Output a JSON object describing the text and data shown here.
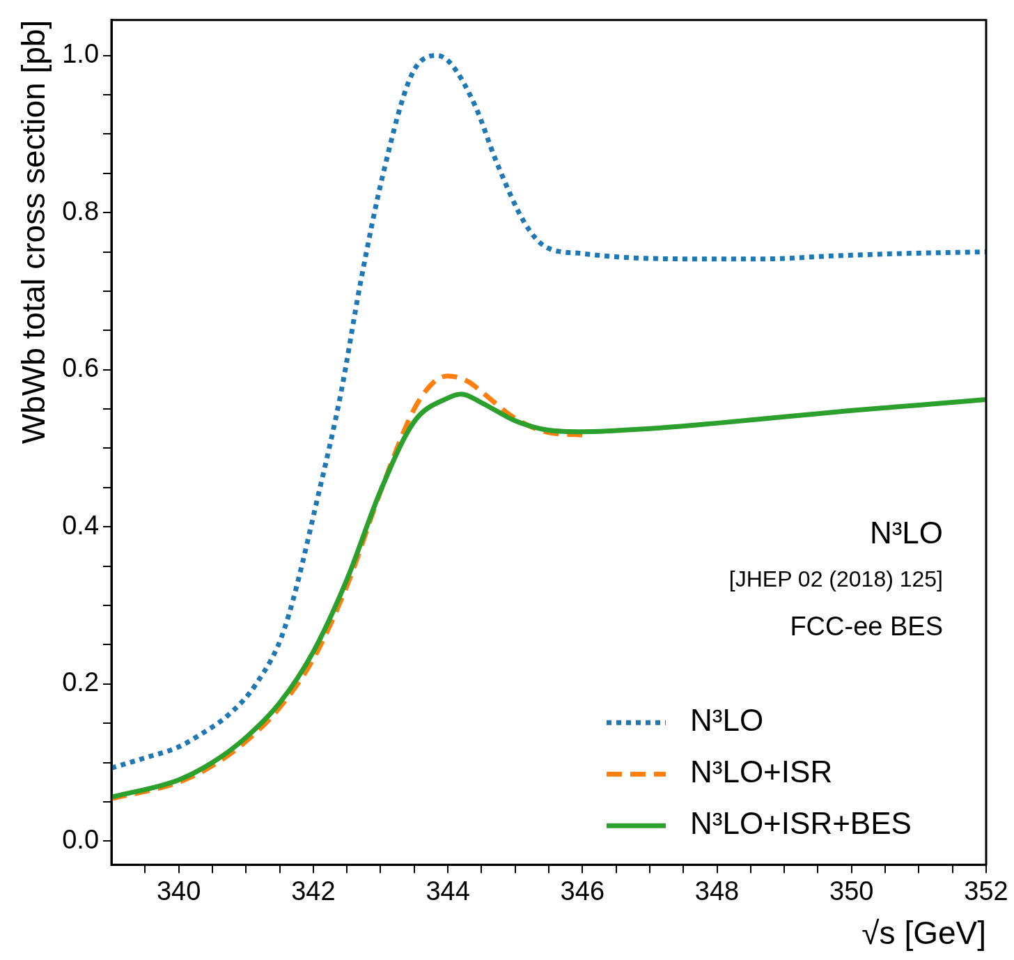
{
  "chart_data": {
    "type": "line",
    "xlabel": "√s [GeV]",
    "ylabel": "WbWb total cross section [pb]",
    "xlim": [
      339,
      352
    ],
    "ylim": [
      -0.03,
      1.045
    ],
    "xticks": [
      340,
      342,
      344,
      346,
      348,
      350,
      352,
      {
        "value": 339.5,
        "label": null
      },
      {
        "value": 340.5,
        "label": null
      },
      {
        "value": 341,
        "label": null
      },
      {
        "value": 341.5,
        "label": null
      },
      {
        "value": 342.5,
        "label": null
      },
      {
        "value": 343,
        "label": null
      },
      {
        "value": 343.5,
        "label": null
      },
      {
        "value": 344.5,
        "label": null
      },
      {
        "value": 345,
        "label": null
      },
      {
        "value": 345.5,
        "label": null
      },
      {
        "value": 346.5,
        "label": null
      },
      {
        "value": 347,
        "label": null
      },
      {
        "value": 347.5,
        "label": null
      },
      {
        "value": 348.5,
        "label": null
      },
      {
        "value": 349,
        "label": null
      },
      {
        "value": 349.5,
        "label": null
      },
      {
        "value": 350.5,
        "label": null
      },
      {
        "value": 351,
        "label": null
      },
      {
        "value": 351.5,
        "label": null
      }
    ],
    "yticks": [
      {
        "value": 0,
        "label": "0.0"
      },
      0.2,
      0.4,
      0.6,
      0.8,
      {
        "value": 1,
        "label": "1.0"
      },
      {
        "value": 0.05,
        "label": null
      },
      {
        "value": 0.1,
        "label": null
      },
      {
        "value": 0.15,
        "label": null
      },
      {
        "value": 0.25,
        "label": null
      },
      {
        "value": 0.3,
        "label": null
      },
      {
        "value": 0.35,
        "label": null
      },
      {
        "value": 0.45,
        "label": null
      },
      {
        "value": 0.5,
        "label": null
      },
      {
        "value": 0.55,
        "label": null
      },
      {
        "value": 0.65,
        "label": null
      },
      {
        "value": 0.7,
        "label": null
      },
      {
        "value": 0.75,
        "label": null
      },
      {
        "value": 0.85,
        "label": null
      },
      {
        "value": 0.9,
        "label": null
      },
      {
        "value": 0.95,
        "label": null
      }
    ],
    "grid": false,
    "legend": "bottom right",
    "annotations": [
      "N³LO",
      "[JHEP 02 (2018) 125]",
      "FCC-ee BES"
    ],
    "series": [
      {
        "name": "N³LO",
        "color": "#1f77b4",
        "line_style": "dotted",
        "x": [
          339,
          339.5,
          340,
          340.31,
          340.73,
          341.15,
          341.57,
          342.1,
          342.41,
          342.7,
          343.04,
          343.46,
          343.83,
          344.04,
          344.41,
          344.72,
          345.14,
          345.46,
          345.98,
          346.6,
          347.66,
          348.7,
          349.76,
          350.81,
          352
        ],
        "values": [
          0.093,
          0.106,
          0.12,
          0.135,
          0.16,
          0.2,
          0.27,
          0.45,
          0.57,
          0.71,
          0.85,
          0.975,
          1.0,
          0.99,
          0.935,
          0.865,
          0.787,
          0.756,
          0.748,
          0.743,
          0.741,
          0.741,
          0.745,
          0.748,
          0.75
        ]
      },
      {
        "name": "N³LO+ISR",
        "color": "#ff7f0e",
        "line_style": "dashed",
        "x": [
          339,
          340,
          340.5,
          341,
          341.5,
          342,
          342.5,
          343,
          343.5,
          343.8,
          344,
          344.3,
          344.5,
          345,
          345.5,
          346
        ],
        "values": [
          0.054,
          0.075,
          0.096,
          0.127,
          0.17,
          0.232,
          0.325,
          0.445,
          0.55,
          0.585,
          0.592,
          0.585,
          0.572,
          0.538,
          0.52,
          0.517
        ]
      },
      {
        "name": "N³LO+ISR+BES",
        "color": "#2ca02c",
        "line_style": "solid",
        "x": [
          339,
          340,
          340.5,
          341,
          341.5,
          342,
          342.5,
          343,
          343.5,
          344,
          344.2,
          344.5,
          345,
          345.5,
          346,
          347,
          348,
          349,
          350,
          351,
          352
        ],
        "values": [
          0.056,
          0.078,
          0.1,
          0.132,
          0.176,
          0.241,
          0.333,
          0.446,
          0.534,
          0.564,
          0.569,
          0.558,
          0.535,
          0.523,
          0.521,
          0.525,
          0.532,
          0.54,
          0.548,
          0.555,
          0.562
        ]
      }
    ]
  }
}
